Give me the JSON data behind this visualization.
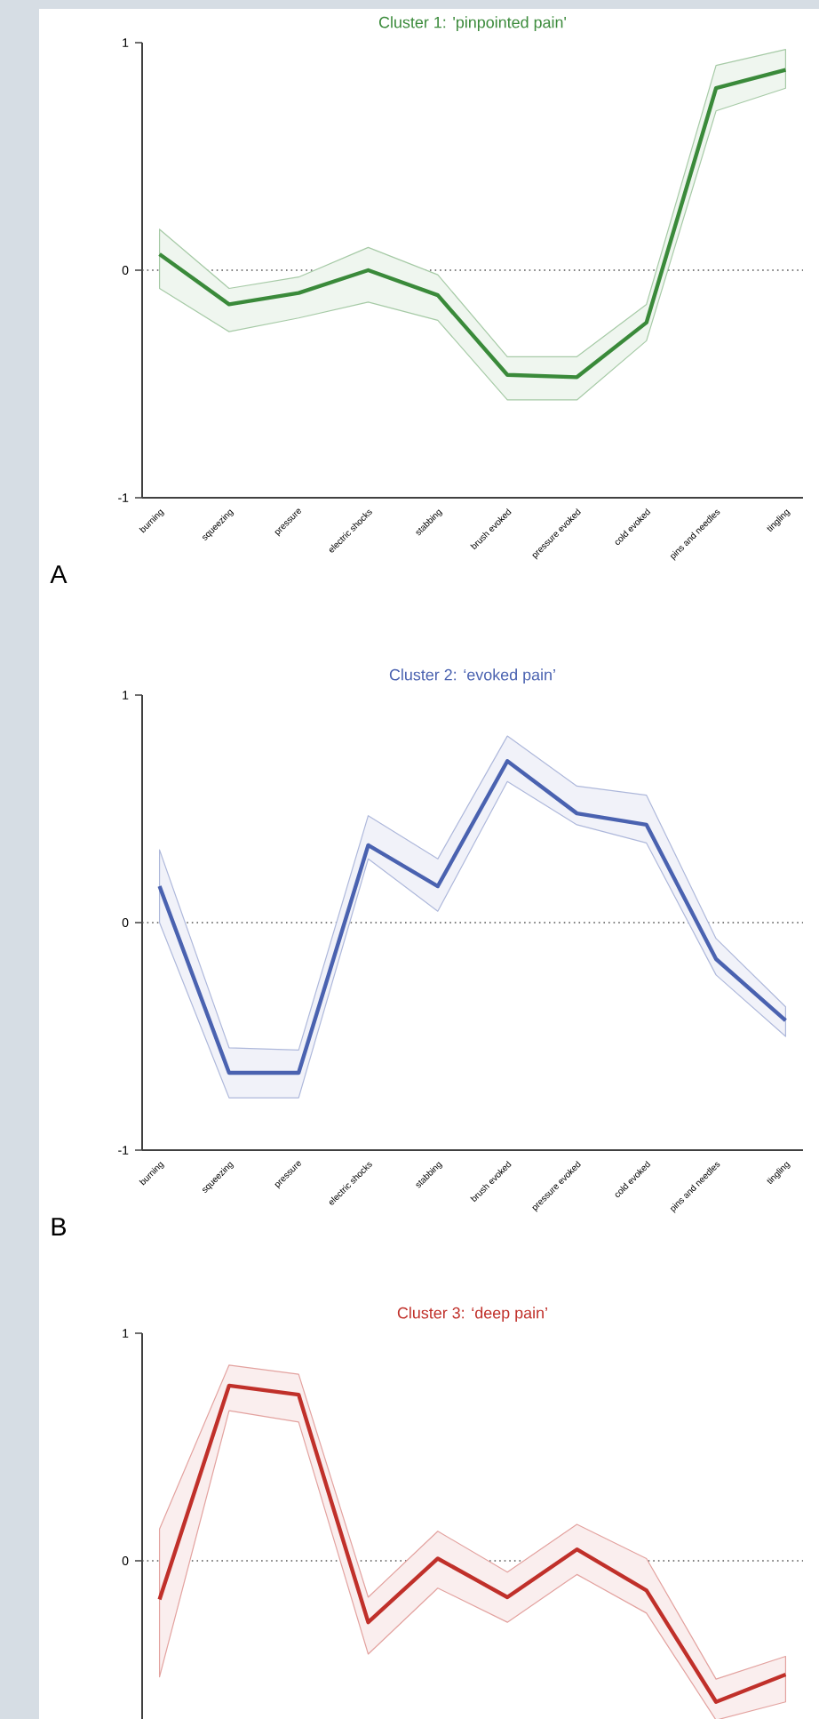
{
  "chart_data": [
    {
      "type": "line",
      "title": "Cluster 1: 'pinpointed pain'",
      "categories": [
        "burning",
        "squeezing",
        "pressure",
        "electric shocks",
        "stabbing",
        "brush evoked",
        "pressure evoked",
        "cold evoked",
        "pins and needles",
        "tingling"
      ],
      "series": [
        {
          "color": "#3a8a3a",
          "values": [
            0.07,
            -0.15,
            -0.1,
            0.0,
            -0.11,
            -0.46,
            -0.47,
            -0.23,
            0.8,
            0.88
          ],
          "lower": [
            -0.08,
            -0.27,
            -0.21,
            -0.14,
            -0.22,
            -0.57,
            -0.57,
            -0.31,
            0.7,
            0.8
          ],
          "upper": [
            0.18,
            -0.08,
            -0.03,
            0.1,
            -0.02,
            -0.38,
            -0.38,
            -0.15,
            0.9,
            0.97
          ]
        }
      ],
      "ylim": [
        -1,
        1
      ],
      "yticks": [
        -1,
        0,
        1
      ],
      "ref_lines": [
        {
          "axis": "y",
          "value": 0,
          "color": "#555555",
          "line_style": "dotted"
        }
      ],
      "annotations": [
        "A"
      ]
    },
    {
      "type": "line",
      "title": "Cluster 2: ‘evoked pain’",
      "categories": [
        "burning",
        "squeezing",
        "pressure",
        "electric shocks",
        "stabbing",
        "brush evoked",
        "pressure evoked",
        "cold evoked",
        "pins and needles",
        "tingling"
      ],
      "series": [
        {
          "color": "#4a62b0",
          "values": [
            0.16,
            -0.66,
            -0.66,
            0.34,
            0.16,
            0.71,
            0.48,
            0.43,
            -0.16,
            -0.43
          ],
          "lower": [
            0.0,
            -0.77,
            -0.77,
            0.28,
            0.05,
            0.62,
            0.43,
            0.35,
            -0.23,
            -0.5
          ],
          "upper": [
            0.32,
            -0.55,
            -0.56,
            0.47,
            0.28,
            0.82,
            0.6,
            0.56,
            -0.07,
            -0.37
          ]
        }
      ],
      "ylim": [
        -1,
        1
      ],
      "yticks": [
        -1,
        0,
        1
      ],
      "ref_lines": [
        {
          "axis": "y",
          "value": 0,
          "color": "#555555",
          "line_style": "dotted"
        }
      ],
      "annotations": [
        "B"
      ]
    },
    {
      "type": "line",
      "title": "Cluster 3: ‘deep pain’",
      "categories": [
        null,
        null,
        null,
        null,
        null,
        null,
        null,
        null,
        null,
        null
      ],
      "series": [
        {
          "color": "#c0302a",
          "values": [
            -0.17,
            0.77,
            0.73,
            -0.27,
            0.01,
            -0.16,
            0.05,
            -0.13,
            -0.62,
            -0.5
          ],
          "lower": [
            -0.51,
            0.66,
            0.61,
            -0.41,
            -0.12,
            -0.27,
            -0.06,
            -0.23,
            -0.7,
            -0.62
          ],
          "upper": [
            0.14,
            0.86,
            0.82,
            -0.16,
            0.13,
            -0.05,
            0.16,
            0.01,
            -0.52,
            -0.42
          ]
        }
      ],
      "ylim": [
        -0.7,
        1
      ],
      "yticks": [
        0,
        1
      ],
      "ref_lines": [
        {
          "axis": "y",
          "value": 0,
          "color": "#555555",
          "line_style": "dotted"
        }
      ],
      "tick_labels": "y"
    }
  ]
}
